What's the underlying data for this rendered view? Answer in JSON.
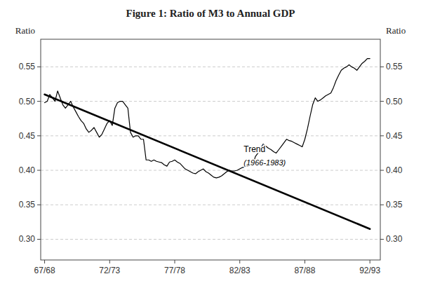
{
  "chart_data": {
    "type": "line",
    "title": "Figure 1: Ratio of M3 to Annual GDP",
    "ylabel": "Ratio",
    "y2label": "Ratio",
    "xlim": [
      -0.3,
      25.8
    ],
    "xticks": [
      {
        "value": 0,
        "label": "67/68"
      },
      {
        "value": 5,
        "label": "72/73"
      },
      {
        "value": 10,
        "label": "77/78"
      },
      {
        "value": 15,
        "label": "82/83"
      },
      {
        "value": 20,
        "label": "87/88"
      },
      {
        "value": 25,
        "label": "92/93"
      }
    ],
    "ylim": [
      0.27,
      0.59
    ],
    "yticks": [
      {
        "value": 0.3,
        "label": "0.30"
      },
      {
        "value": 0.35,
        "label": "0.35"
      },
      {
        "value": 0.4,
        "label": "0.40"
      },
      {
        "value": 0.45,
        "label": "0.45"
      },
      {
        "value": 0.5,
        "label": "0.50"
      },
      {
        "value": 0.55,
        "label": "0.55"
      }
    ],
    "y2lim": [
      0.27,
      0.59
    ],
    "y2ticks": [
      {
        "value": 0.3,
        "label": "0.30"
      },
      {
        "value": 0.35,
        "label": "0.35"
      },
      {
        "value": 0.4,
        "label": "0.40"
      },
      {
        "value": 0.45,
        "label": "0.45"
      },
      {
        "value": 0.5,
        "label": "0.50"
      },
      {
        "value": 0.55,
        "label": "0.55"
      }
    ],
    "grid": true,
    "series": [
      {
        "color": "#000000",
        "x": [
          0,
          0.2,
          0.4,
          0.6,
          0.8,
          1.0,
          1.2,
          1.4,
          1.6,
          1.8,
          2.0,
          2.2,
          2.4,
          2.6,
          2.8,
          3.0,
          3.2,
          3.4,
          3.6,
          3.8,
          4.0,
          4.2,
          4.4,
          4.6,
          4.8,
          5.0,
          5.2,
          5.4,
          5.6,
          5.8,
          6.0,
          6.2,
          6.4,
          6.6,
          6.8,
          7.0,
          7.2,
          7.4,
          7.6,
          7.8,
          8.0,
          8.2,
          8.4,
          8.6,
          8.8,
          9.0,
          9.2,
          9.4,
          9.6,
          9.8,
          10.0,
          10.2,
          10.4,
          10.6,
          10.8,
          11.0,
          11.2,
          11.4,
          11.6,
          11.8,
          12.0,
          12.2,
          12.4,
          12.6,
          12.8,
          13.0,
          13.2,
          13.4,
          13.6,
          13.8,
          14.0,
          14.2,
          14.4,
          14.6,
          14.8,
          15.0,
          15.2,
          15.4,
          15.6,
          15.8,
          16.0,
          16.2,
          16.4,
          16.6,
          16.8,
          17.0,
          17.2,
          17.4,
          17.6,
          17.8,
          18.0,
          18.2,
          18.4,
          18.6,
          18.8,
          19.0,
          19.2,
          19.4,
          19.6,
          19.8,
          20.0,
          20.2,
          20.4,
          20.6,
          20.8,
          21.0,
          21.2,
          21.4,
          21.6,
          21.8,
          22.0,
          22.2,
          22.4,
          22.6,
          22.8,
          23.0,
          23.2,
          23.4,
          23.6,
          23.8,
          24.0,
          24.2,
          24.4,
          24.6,
          24.8,
          25.0
        ],
        "values": [
          0.498,
          0.5,
          0.51,
          0.505,
          0.5,
          0.515,
          0.505,
          0.495,
          0.49,
          0.495,
          0.5,
          0.492,
          0.485,
          0.478,
          0.472,
          0.468,
          0.46,
          0.455,
          0.458,
          0.462,
          0.455,
          0.448,
          0.452,
          0.46,
          0.468,
          0.472,
          0.465,
          0.49,
          0.498,
          0.5,
          0.5,
          0.495,
          0.49,
          0.455,
          0.448,
          0.45,
          0.45,
          0.445,
          0.445,
          0.415,
          0.415,
          0.413,
          0.415,
          0.413,
          0.412,
          0.411,
          0.408,
          0.406,
          0.412,
          0.413,
          0.415,
          0.412,
          0.41,
          0.406,
          0.402,
          0.4,
          0.398,
          0.396,
          0.395,
          0.398,
          0.4,
          0.402,
          0.398,
          0.396,
          0.393,
          0.39,
          0.389,
          0.39,
          0.392,
          0.395,
          0.398,
          0.4,
          0.399,
          0.399,
          0.4,
          0.402,
          0.404,
          0.405,
          0.406,
          0.407,
          0.408,
          0.42,
          0.425,
          0.432,
          0.438,
          0.435,
          0.432,
          0.43,
          0.427,
          0.425,
          0.43,
          0.435,
          0.44,
          0.445,
          0.443,
          0.442,
          0.44,
          0.438,
          0.436,
          0.434,
          0.445,
          0.46,
          0.478,
          0.495,
          0.505,
          0.5,
          0.502,
          0.505,
          0.508,
          0.51,
          0.512,
          0.52,
          0.53,
          0.538,
          0.545,
          0.548,
          0.55,
          0.553,
          0.55,
          0.548,
          0.545,
          0.55,
          0.555,
          0.558,
          0.562,
          0.562
        ]
      },
      {
        "color": "#000000",
        "x": [
          0,
          25
        ],
        "values": [
          0.51,
          0.315
        ]
      }
    ],
    "annotations": [
      {
        "text": "Trend",
        "x": 15.3,
        "y": 0.426
      },
      {
        "text": "(1966-1983)",
        "x": 15.3,
        "y": 0.415
      }
    ]
  }
}
